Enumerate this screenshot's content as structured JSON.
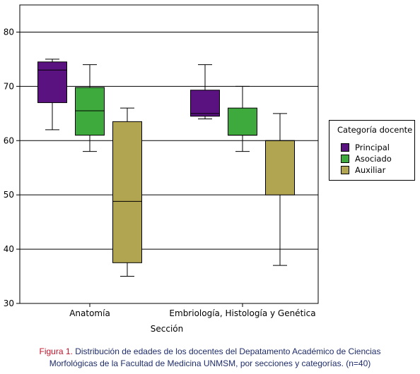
{
  "chart_data": {
    "type": "boxplot",
    "xlabel": "Sección",
    "ylabel": "",
    "ylim": [
      30,
      85
    ],
    "yticks": [
      30,
      40,
      50,
      60,
      70,
      80
    ],
    "grid": "horizontal",
    "categories": [
      "Anatomía",
      "Embriología, Histología y Genética"
    ],
    "legend": {
      "title": "Categoría docente",
      "placement": "right"
    },
    "series": [
      {
        "name": "Principal",
        "color": "#5b1281",
        "boxes": [
          {
            "whisker_low": 62,
            "q1": 67,
            "median": 73,
            "q3": 74.5,
            "whisker_high": 75
          },
          {
            "whisker_low": 64,
            "q1": 64.5,
            "median": 65,
            "q3": 69.3,
            "whisker_high": 74
          }
        ]
      },
      {
        "name": "Asociado",
        "color": "#3eaa3e",
        "boxes": [
          {
            "whisker_low": 58,
            "q1": 61,
            "median": 65.5,
            "q3": 69.8,
            "whisker_high": 74
          },
          {
            "whisker_low": 58,
            "q1": 61,
            "median": 61,
            "q3": 66,
            "whisker_high": 70
          }
        ]
      },
      {
        "name": "Auxiliar",
        "color": "#b1a552",
        "boxes": [
          {
            "whisker_low": 35,
            "q1": 37.5,
            "median": 48.8,
            "q3": 63.5,
            "whisker_high": 66
          },
          {
            "whisker_low": 37,
            "q1": 50,
            "median": 60,
            "q3": 60,
            "whisker_high": 65
          }
        ]
      }
    ]
  },
  "caption": {
    "label": "Figura 1.",
    "line1": "Distribución de edades de los docentes del Depatamento Académico de Ciencias",
    "line2": "Morfológicas de la Facultad de Medicina UNMSM, por secciones y categorías. (n=40)"
  }
}
